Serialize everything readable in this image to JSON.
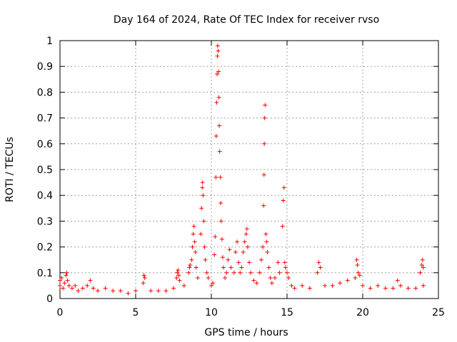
{
  "chart_data": {
    "type": "scatter",
    "title": "Day 164 of 2024, Rate Of TEC Index for receiver rvso",
    "xlabel": "GPS time / hours",
    "ylabel": "ROTI / TECUs",
    "xlim": [
      0,
      25
    ],
    "ylim": [
      0,
      1
    ],
    "xticks": [
      0,
      5,
      10,
      15,
      20,
      25
    ],
    "yticks": [
      0,
      0.1,
      0.2,
      0.3,
      0.4,
      0.5,
      0.6,
      0.7,
      0.8,
      0.9,
      1
    ],
    "grid": true,
    "marker": "+",
    "marker_color": "#ff0000",
    "series": [
      {
        "points": [
          [
            0.0,
            0.05
          ],
          [
            0.0,
            0.07
          ],
          [
            0.1,
            0.08
          ],
          [
            0.2,
            0.04
          ],
          [
            0.3,
            0.06
          ],
          [
            0.4,
            0.09
          ],
          [
            0.45,
            0.1
          ],
          [
            0.5,
            0.07
          ],
          [
            0.6,
            0.05
          ],
          [
            0.8,
            0.04
          ],
          [
            1.0,
            0.05
          ],
          [
            1.2,
            0.03
          ],
          [
            1.5,
            0.04
          ],
          [
            1.8,
            0.05
          ],
          [
            2.0,
            0.07
          ],
          [
            2.2,
            0.04
          ],
          [
            2.5,
            0.03
          ],
          [
            3.0,
            0.04
          ],
          [
            3.5,
            0.03
          ],
          [
            4.0,
            0.03
          ],
          [
            4.5,
            0.02
          ],
          [
            5.0,
            0.03
          ],
          [
            5.5,
            0.06
          ],
          [
            5.55,
            0.09
          ],
          [
            5.6,
            0.08
          ],
          [
            6.0,
            0.03
          ],
          [
            6.5,
            0.03
          ],
          [
            7.0,
            0.03
          ],
          [
            7.5,
            0.04
          ],
          [
            7.7,
            0.08
          ],
          [
            7.75,
            0.1
          ],
          [
            7.8,
            0.11
          ],
          [
            7.85,
            0.09
          ],
          [
            7.9,
            0.07
          ],
          [
            8.2,
            0.05
          ],
          [
            8.5,
            0.1
          ],
          [
            8.55,
            0.12
          ],
          [
            8.6,
            0.13
          ],
          [
            8.7,
            0.15
          ],
          [
            8.75,
            0.2
          ],
          [
            8.8,
            0.25
          ],
          [
            8.85,
            0.28
          ],
          [
            8.9,
            0.22
          ],
          [
            8.95,
            0.18
          ],
          [
            9.0,
            0.12
          ],
          [
            9.1,
            0.08
          ],
          [
            9.3,
            0.25
          ],
          [
            9.35,
            0.35
          ],
          [
            9.4,
            0.43
          ],
          [
            9.42,
            0.45
          ],
          [
            9.45,
            0.4
          ],
          [
            9.5,
            0.3
          ],
          [
            9.55,
            0.2
          ],
          [
            9.6,
            0.15
          ],
          [
            9.7,
            0.1
          ],
          [
            9.8,
            0.08
          ],
          [
            10.0,
            0.05
          ],
          [
            10.1,
            0.06
          ],
          [
            10.2,
            0.17
          ],
          [
            10.25,
            0.24
          ],
          [
            10.3,
            0.47
          ],
          [
            10.32,
            0.63
          ],
          [
            10.35,
            0.76
          ],
          [
            10.38,
            0.87
          ],
          [
            10.4,
            0.94
          ],
          [
            10.42,
            0.98
          ],
          [
            10.45,
            0.96
          ],
          [
            10.48,
            0.88
          ],
          [
            10.5,
            0.78
          ],
          [
            10.52,
            0.67
          ],
          [
            10.55,
            0.57
          ],
          [
            10.6,
            0.47
          ],
          [
            10.62,
            0.37
          ],
          [
            10.65,
            0.3
          ],
          [
            10.7,
            0.23
          ],
          [
            10.75,
            0.16
          ],
          [
            10.8,
            0.12
          ],
          [
            10.9,
            0.08
          ],
          [
            11.0,
            0.1
          ],
          [
            11.1,
            0.15
          ],
          [
            11.2,
            0.19
          ],
          [
            11.3,
            0.12
          ],
          [
            11.5,
            0.1
          ],
          [
            11.6,
            0.18
          ],
          [
            11.7,
            0.22
          ],
          [
            11.8,
            0.14
          ],
          [
            11.9,
            0.1
          ],
          [
            12.0,
            0.12
          ],
          [
            12.1,
            0.18
          ],
          [
            12.2,
            0.22
          ],
          [
            12.3,
            0.25
          ],
          [
            12.35,
            0.27
          ],
          [
            12.4,
            0.2
          ],
          [
            12.5,
            0.14
          ],
          [
            12.6,
            0.1
          ],
          [
            12.8,
            0.07
          ],
          [
            13.0,
            0.06
          ],
          [
            13.2,
            0.1
          ],
          [
            13.3,
            0.15
          ],
          [
            13.4,
            0.2
          ],
          [
            13.45,
            0.36
          ],
          [
            13.48,
            0.48
          ],
          [
            13.5,
            0.6
          ],
          [
            13.52,
            0.7
          ],
          [
            13.55,
            0.75
          ],
          [
            13.6,
            0.25
          ],
          [
            13.65,
            0.22
          ],
          [
            13.7,
            0.18
          ],
          [
            13.8,
            0.12
          ],
          [
            13.9,
            0.08
          ],
          [
            14.0,
            0.06
          ],
          [
            14.2,
            0.08
          ],
          [
            14.4,
            0.14
          ],
          [
            14.5,
            0.1
          ],
          [
            14.7,
            0.28
          ],
          [
            14.75,
            0.38
          ],
          [
            14.8,
            0.43
          ],
          [
            14.85,
            0.14
          ],
          [
            14.9,
            0.12
          ],
          [
            15.0,
            0.1
          ],
          [
            15.1,
            0.08
          ],
          [
            15.3,
            0.05
          ],
          [
            15.5,
            0.04
          ],
          [
            16.0,
            0.05
          ],
          [
            16.5,
            0.04
          ],
          [
            17.0,
            0.1
          ],
          [
            17.1,
            0.14
          ],
          [
            17.2,
            0.12
          ],
          [
            17.5,
            0.05
          ],
          [
            18.0,
            0.05
          ],
          [
            18.5,
            0.06
          ],
          [
            19.0,
            0.07
          ],
          [
            19.5,
            0.08
          ],
          [
            19.6,
            0.15
          ],
          [
            19.65,
            0.13
          ],
          [
            19.7,
            0.1
          ],
          [
            19.8,
            0.09
          ],
          [
            20.0,
            0.05
          ],
          [
            20.5,
            0.04
          ],
          [
            21.0,
            0.05
          ],
          [
            21.5,
            0.04
          ],
          [
            22.0,
            0.04
          ],
          [
            22.3,
            0.07
          ],
          [
            22.5,
            0.05
          ],
          [
            23.0,
            0.04
          ],
          [
            23.5,
            0.04
          ],
          [
            23.8,
            0.1
          ],
          [
            23.9,
            0.13
          ],
          [
            23.95,
            0.15
          ],
          [
            24.0,
            0.12
          ],
          [
            24.0,
            0.05
          ]
        ]
      }
    ]
  }
}
